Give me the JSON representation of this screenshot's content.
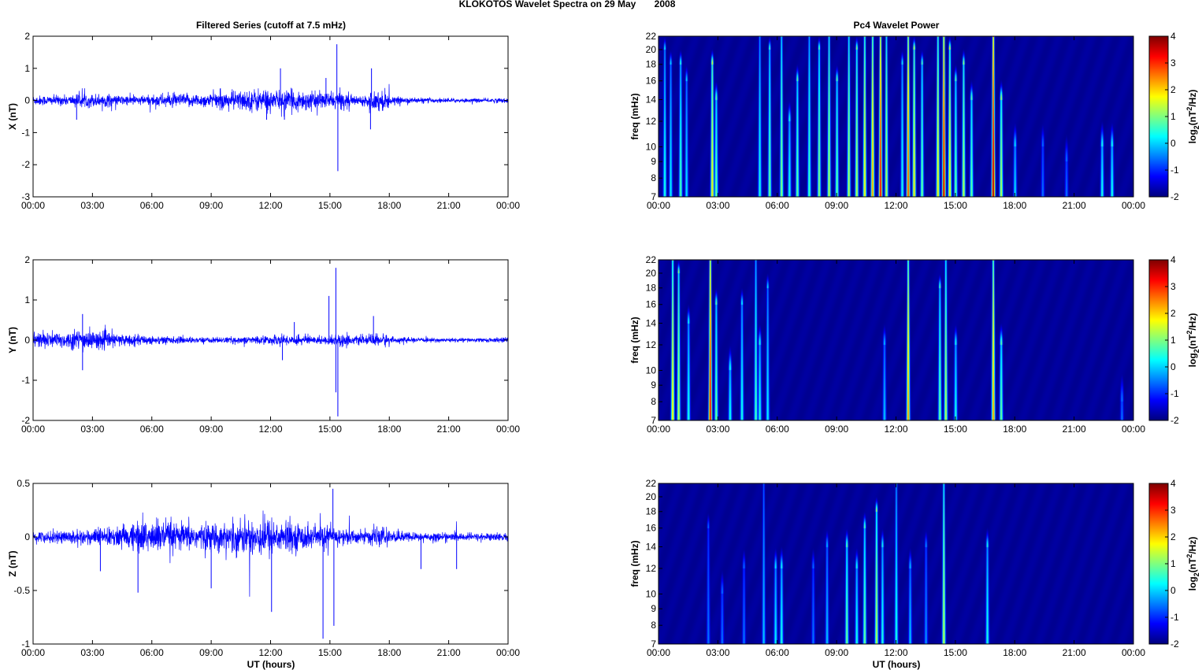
{
  "title": "KLOKOTOS Wavelet Spectra on 29 May       2008",
  "left_title": "Filtered Series (cutoff at 7.5 mHz)",
  "right_title": "Pc4 Wavelet Power",
  "xlabel": "UT (hours)",
  "x_ticks": [
    "00:00",
    "03:00",
    "06:00",
    "09:00",
    "12:00",
    "15:00",
    "18:00",
    "21:00",
    "00:00"
  ],
  "freq_label": "freq (mHz)",
  "freq_ticks": [
    7,
    8,
    9,
    10,
    12,
    14,
    16,
    18,
    20,
    22
  ],
  "colorbar_label": "log2(nT2/Hz)",
  "colorbar_ticks": [
    4,
    3,
    2,
    1,
    0,
    -1,
    -2
  ],
  "colors": {
    "trace": "#0000ff",
    "axes": "#000000"
  },
  "chart_data": [
    {
      "type": "line",
      "component": "X",
      "ylabel": "X (nT)",
      "ylim": [
        -3,
        2
      ],
      "y_ticks": [
        2,
        1,
        0,
        -1,
        -2,
        -3
      ],
      "xlim_hours": [
        0,
        24
      ],
      "hourly_amplitude": [
        0.15,
        0.15,
        0.2,
        0.2,
        0.15,
        0.15,
        0.2,
        0.2,
        0.2,
        0.25,
        0.3,
        0.35,
        0.3,
        0.3,
        0.25,
        0.25,
        0.15,
        0.3,
        0.1,
        0.08,
        0.07,
        0.06,
        0.06,
        0.07
      ],
      "spikes": [
        [
          12.5,
          1.0
        ],
        [
          12.7,
          -0.6
        ],
        [
          14.8,
          0.7
        ],
        [
          15.35,
          1.75
        ],
        [
          15.4,
          -2.2
        ],
        [
          17.1,
          1.0
        ],
        [
          17.05,
          -0.9
        ],
        [
          2.2,
          -0.6
        ],
        [
          11.8,
          -0.6
        ]
      ]
    },
    {
      "type": "line",
      "component": "Y",
      "ylabel": "Y (nT)",
      "ylim": [
        -2,
        2
      ],
      "y_ticks": [
        2,
        1,
        0,
        -1,
        -2
      ],
      "xlim_hours": [
        0,
        24
      ],
      "hourly_amplitude": [
        0.2,
        0.2,
        0.25,
        0.2,
        0.15,
        0.12,
        0.1,
        0.08,
        0.07,
        0.07,
        0.08,
        0.1,
        0.12,
        0.12,
        0.1,
        0.15,
        0.1,
        0.15,
        0.07,
        0.05,
        0.05,
        0.05,
        0.05,
        0.06
      ],
      "spikes": [
        [
          2.5,
          -0.75
        ],
        [
          2.5,
          0.65
        ],
        [
          14.95,
          1.1
        ],
        [
          15.3,
          1.8
        ],
        [
          15.3,
          -1.3
        ],
        [
          15.4,
          -1.9
        ],
        [
          17.2,
          0.6
        ],
        [
          12.6,
          -0.5
        ],
        [
          13.2,
          0.45
        ]
      ]
    },
    {
      "type": "line",
      "component": "Z",
      "ylabel": "Z (nT)",
      "ylim": [
        -1,
        0.5
      ],
      "y_ticks": [
        0.5,
        0,
        -0.5,
        -1
      ],
      "xlim_hours": [
        0,
        24
      ],
      "hourly_amplitude": [
        0.05,
        0.06,
        0.07,
        0.08,
        0.1,
        0.15,
        0.15,
        0.12,
        0.12,
        0.12,
        0.15,
        0.18,
        0.15,
        0.12,
        0.1,
        0.08,
        0.06,
        0.08,
        0.05,
        0.04,
        0.04,
        0.035,
        0.035,
        0.035
      ],
      "spikes": [
        [
          5.3,
          -0.52
        ],
        [
          9.0,
          -0.48
        ],
        [
          12.05,
          -0.7
        ],
        [
          14.65,
          -0.95
        ],
        [
          15.15,
          0.45
        ],
        [
          15.2,
          -0.83
        ],
        [
          3.4,
          -0.32
        ],
        [
          19.6,
          -0.3
        ],
        [
          21.4,
          -0.3
        ]
      ]
    },
    {
      "type": "heatmap",
      "component": "X",
      "ylim_mHz": [
        7,
        22
      ],
      "clim": [
        -2,
        4
      ],
      "bursts_hour_peak_topfreq": [
        [
          0.3,
          0.5,
          20
        ],
        [
          0.6,
          0.3,
          18
        ],
        [
          1.1,
          0.8,
          18
        ],
        [
          1.4,
          0.2,
          16
        ],
        [
          2.7,
          2.0,
          18
        ],
        [
          2.9,
          1,
          14
        ],
        [
          5.1,
          0.5,
          22
        ],
        [
          5.6,
          1,
          20
        ],
        [
          6.2,
          1.2,
          22
        ],
        [
          6.6,
          0.5,
          12
        ],
        [
          7.0,
          1,
          16
        ],
        [
          7.6,
          0.8,
          22
        ],
        [
          8.1,
          1.2,
          20
        ],
        [
          8.6,
          1.5,
          22
        ],
        [
          9.0,
          1,
          16
        ],
        [
          9.6,
          1.5,
          22
        ],
        [
          10.0,
          1.5,
          20
        ],
        [
          10.4,
          2,
          22
        ],
        [
          10.8,
          2.5,
          22
        ],
        [
          11.2,
          3.5,
          22
        ],
        [
          11.5,
          1.5,
          22
        ],
        [
          12.3,
          0.5,
          18
        ],
        [
          12.6,
          3,
          22
        ],
        [
          12.9,
          2,
          20
        ],
        [
          13.3,
          1,
          18
        ],
        [
          14.1,
          2,
          22
        ],
        [
          14.4,
          3.8,
          22
        ],
        [
          14.7,
          2,
          20
        ],
        [
          15.0,
          1,
          16
        ],
        [
          15.4,
          1.5,
          18
        ],
        [
          15.8,
          1,
          14
        ],
        [
          16.9,
          4,
          22
        ],
        [
          17.3,
          1.5,
          14
        ],
        [
          18.0,
          0.2,
          10
        ],
        [
          19.4,
          -0.5,
          10
        ],
        [
          20.6,
          -0.5,
          9
        ],
        [
          22.4,
          0.5,
          10
        ],
        [
          22.9,
          0.5,
          10
        ]
      ]
    },
    {
      "type": "heatmap",
      "component": "Y",
      "ylim_mHz": [
        7,
        22
      ],
      "clim": [
        -2,
        4
      ],
      "bursts_hour_peak_topfreq": [
        [
          0.7,
          2,
          22
        ],
        [
          1.0,
          1.5,
          20
        ],
        [
          1.5,
          0.5,
          14
        ],
        [
          2.6,
          3.5,
          22
        ],
        [
          2.9,
          1,
          16
        ],
        [
          3.6,
          0.5,
          10
        ],
        [
          4.2,
          0.5,
          16
        ],
        [
          4.9,
          0.8,
          22
        ],
        [
          5.1,
          0.5,
          12
        ],
        [
          5.5,
          0.3,
          18
        ],
        [
          11.4,
          0,
          12
        ],
        [
          12.6,
          2.5,
          22
        ],
        [
          14.2,
          1,
          18
        ],
        [
          14.5,
          1.5,
          22
        ],
        [
          15.0,
          0.5,
          12
        ],
        [
          16.9,
          2.5,
          22
        ],
        [
          17.3,
          1,
          12
        ],
        [
          23.4,
          -0.5,
          8
        ]
      ]
    },
    {
      "type": "heatmap",
      "component": "Z",
      "ylim_mHz": [
        7,
        22
      ],
      "clim": [
        -2,
        4
      ],
      "bursts_hour_peak_topfreq": [
        [
          2.5,
          -0.5,
          16
        ],
        [
          3.2,
          -0.5,
          10
        ],
        [
          4.3,
          -0.5,
          12
        ],
        [
          5.3,
          0,
          22
        ],
        [
          5.9,
          0.3,
          12
        ],
        [
          6.2,
          0.5,
          12
        ],
        [
          7.8,
          -0.5,
          12
        ],
        [
          8.5,
          0,
          14
        ],
        [
          9.5,
          1,
          14
        ],
        [
          10.0,
          0.5,
          12
        ],
        [
          10.4,
          1,
          16
        ],
        [
          11.0,
          1.5,
          18
        ],
        [
          11.3,
          0.5,
          14
        ],
        [
          12.0,
          0.5,
          22
        ],
        [
          12.7,
          0,
          12
        ],
        [
          13.5,
          -0.3,
          14
        ],
        [
          14.4,
          1.5,
          22
        ],
        [
          16.6,
          0.5,
          14
        ]
      ]
    }
  ]
}
